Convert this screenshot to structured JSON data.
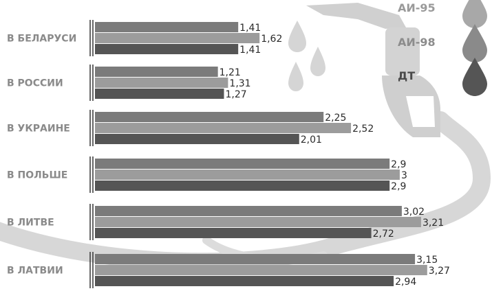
{
  "chart_data": {
    "type": "bar",
    "orientation": "horizontal",
    "categories": [
      "В БЕЛАРУСИ",
      "В РОССИИ",
      "В УКРАИНЕ",
      "В ПОЛЬШЕ",
      "В ЛИТВЕ",
      "В ЛАТВИИ"
    ],
    "series": [
      {
        "name": "АИ-95",
        "values": [
          1.41,
          1.21,
          2.25,
          2.9,
          3.02,
          3.15
        ],
        "labels": [
          "1,41",
          "1,21",
          "2,25",
          "2,9",
          "3,02",
          "3,15"
        ],
        "color": "#7b7b7b"
      },
      {
        "name": "АИ-98",
        "values": [
          1.62,
          1.31,
          2.52,
          3,
          3.21,
          3.27
        ],
        "labels": [
          "1,62",
          "1,31",
          "2,52",
          "3",
          "3,21",
          "3,27"
        ],
        "color": "#9c9c9c"
      },
      {
        "name": "ДТ",
        "values": [
          1.41,
          1.27,
          2.01,
          2.9,
          2.72,
          2.94
        ],
        "labels": [
          "1,41",
          "1,27",
          "2,01",
          "2,9",
          "2,72",
          "2,94"
        ],
        "color": "#555555"
      }
    ],
    "legend": {
      "placement": "top-right",
      "items": [
        {
          "label": "АИ-95",
          "color": "#a8a8a8",
          "text_color": "#9a9a9a"
        },
        {
          "label": "АИ-98",
          "color": "#8a8a8a",
          "text_color": "#8c8c8c"
        },
        {
          "label": "ДТ",
          "color": "#555555",
          "text_color": "#4a4a4a"
        }
      ]
    },
    "title": "",
    "xlabel": "",
    "ylabel": "",
    "xlim": [
      0,
      3.4
    ],
    "grid": false
  },
  "colors": {
    "label_gray": "#8a8a8a",
    "divider": "#333333",
    "decor_gray": "#d7d7d7"
  },
  "icons": {
    "decor": [
      "fuel-nozzle-icon",
      "fuel-drop-icon"
    ]
  }
}
